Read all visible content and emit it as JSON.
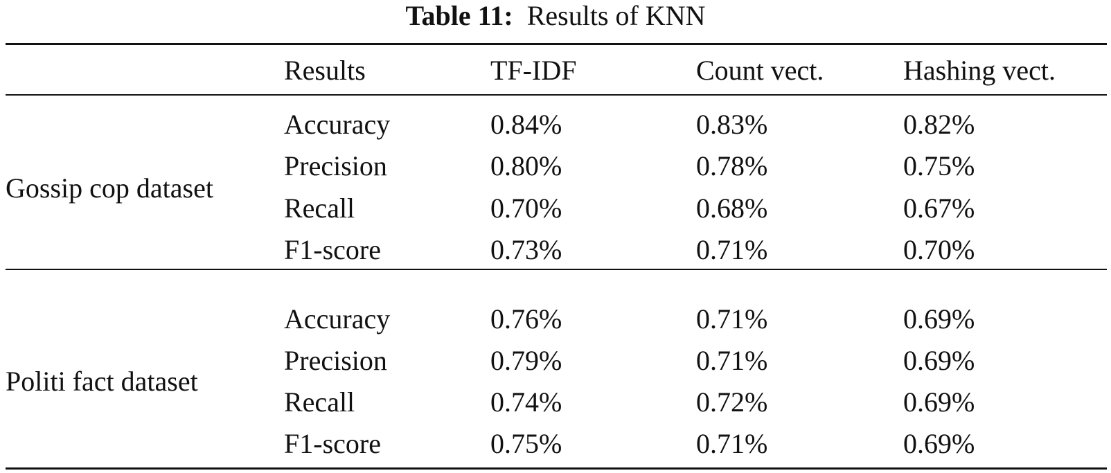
{
  "caption": {
    "label": "Table 11:",
    "title": "Results of KNN"
  },
  "header": {
    "group": "",
    "metric": "Results",
    "col1": "TF-IDF",
    "col2": "Count vect.",
    "col3": "Hashing vect."
  },
  "groups": [
    {
      "name": "Gossip cop dataset",
      "rows": [
        {
          "metric": "Accuracy",
          "tfidf": "0.84%",
          "count": "0.83%",
          "hashing": "0.82%"
        },
        {
          "metric": "Precision",
          "tfidf": "0.80%",
          "count": "0.78%",
          "hashing": "0.75%"
        },
        {
          "metric": "Recall",
          "tfidf": "0.70%",
          "count": "0.68%",
          "hashing": "0.67%"
        },
        {
          "metric": "F1-score",
          "tfidf": "0.73%",
          "count": "0.71%",
          "hashing": "0.70%"
        }
      ]
    },
    {
      "name": "Politi fact dataset",
      "rows": [
        {
          "metric": "Accuracy",
          "tfidf": "0.76%",
          "count": "0.71%",
          "hashing": "0.69%"
        },
        {
          "metric": "Precision",
          "tfidf": "0.79%",
          "count": "0.71%",
          "hashing": "0.69%"
        },
        {
          "metric": "Recall",
          "tfidf": "0.74%",
          "count": "0.72%",
          "hashing": "0.69%"
        },
        {
          "metric": "F1-score",
          "tfidf": "0.75%",
          "count": "0.71%",
          "hashing": "0.69%"
        }
      ]
    }
  ]
}
